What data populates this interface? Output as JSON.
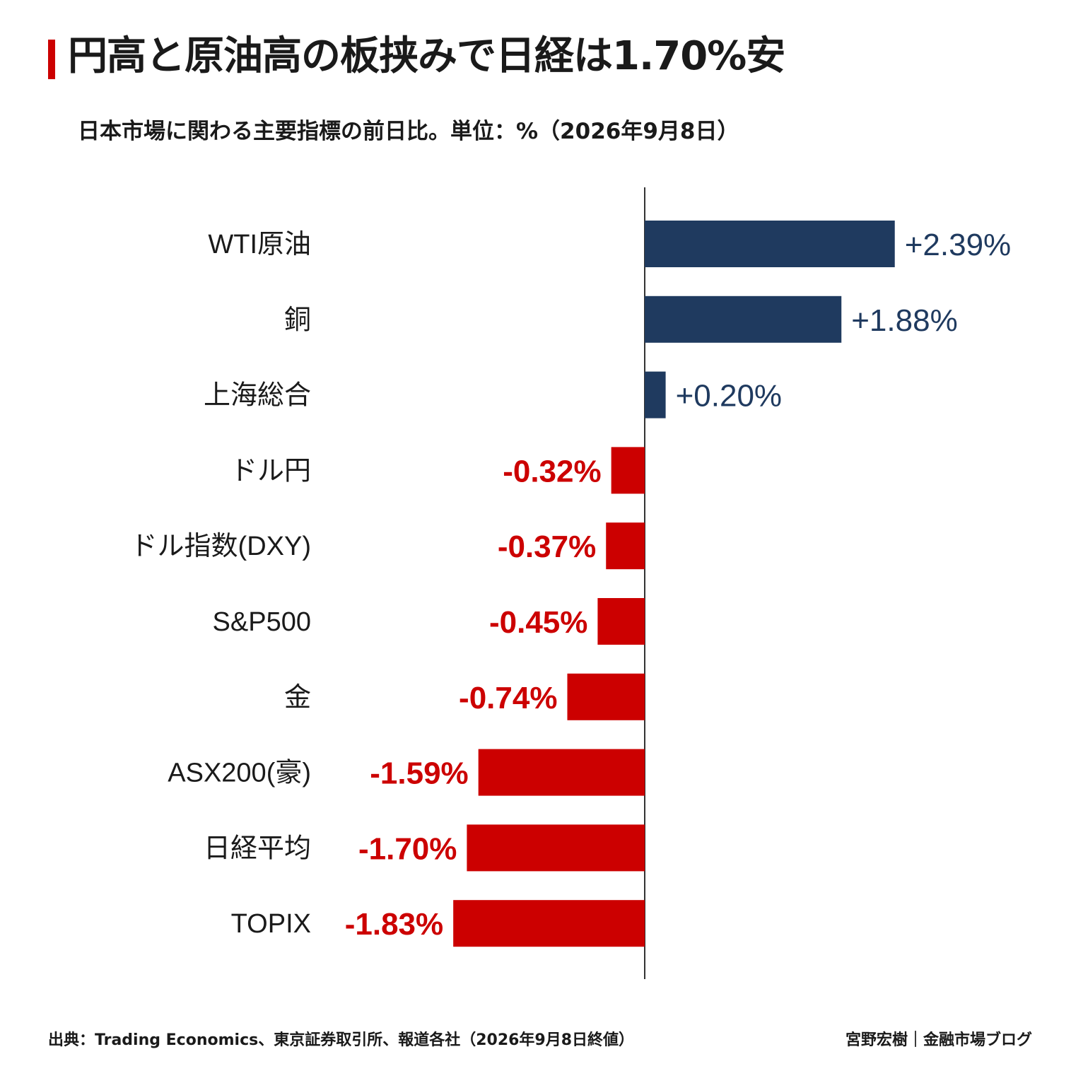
{
  "header": {
    "title": "円高と原油高の板挟みで日経は1.70%安",
    "subtitle": "日本市場に関わる主要指標の前日比。単位：%（2026年9月8日）"
  },
  "footer": {
    "source": "出典：Trading Economics、東京証券取引所、報道各社（2026年9月8日終値）",
    "credit": "宮野宏樹｜金融市場ブログ"
  },
  "colors": {
    "positive": "#1f3a5f",
    "negative": "#cc0000",
    "accent": "#cc0000",
    "axis": "#333333"
  },
  "chart_data": {
    "type": "bar",
    "orientation": "horizontal",
    "categories": [
      "WTI原油",
      "銅",
      "上海総合",
      "ドル円",
      "ドル指数(DXY)",
      "S&P500",
      "金",
      "ASX200(豪)",
      "日経平均",
      "TOPIX"
    ],
    "values": [
      2.39,
      1.88,
      0.2,
      -0.32,
      -0.37,
      -0.45,
      -0.74,
      -1.59,
      -1.7,
      -1.83
    ],
    "labels": [
      "+2.39%",
      "+1.88%",
      "+0.20%",
      "-0.32%",
      "-0.37%",
      "-0.45%",
      "-0.74%",
      "-1.59%",
      "-1.70%",
      "-1.83%"
    ],
    "title": "",
    "xlabel": "",
    "ylabel": "",
    "xlim": [
      -1.83,
      2.39
    ],
    "grid": false,
    "legend": "none"
  }
}
